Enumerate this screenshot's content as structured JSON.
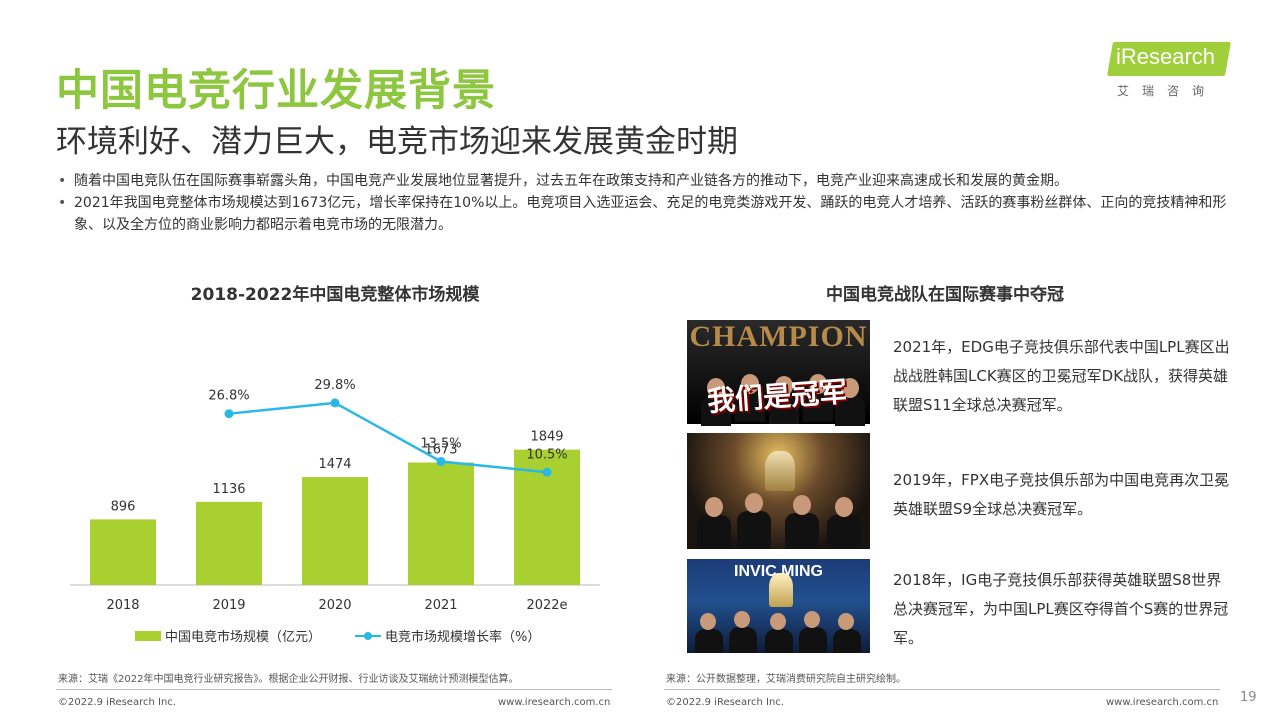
{
  "header": {
    "title": "中国电竞行业发展背景",
    "subtitle": "环境利好、潜力巨大，电竞市场迎来发展黄金时期"
  },
  "logo": {
    "brand": "iResearch",
    "sub": "艾瑞咨询"
  },
  "bullets": [
    "随着中国电竞队伍在国际赛事崭露头角，中国电竞产业发展地位显著提升，过去五年在政策支持和产业链各方的推动下，电竞产业迎来高速成长和发展的黄金期。",
    "2021年我国电竞整体市场规模达到1673亿元，增长率保持在10%以上。电竞项目入选亚运会、充足的电竞类游戏开发、踊跃的电竞人才培养、活跃的赛事粉丝群体、正向的竞技精神和形象、以及全方位的商业影响力都昭示着电竞市场的无限潜力。"
  ],
  "chart_data": {
    "type": "bar",
    "title": "2018-2022年中国电竞整体市场规模",
    "categories": [
      "2018",
      "2019",
      "2020",
      "2021",
      "2022e"
    ],
    "series": [
      {
        "name": "中国电竞市场规模（亿元）",
        "type": "bar",
        "values": [
          896,
          1136,
          1474,
          1673,
          1849
        ],
        "labels": [
          "896",
          "1136",
          "1474",
          "1673",
          "1849"
        ],
        "color": "#a8d030"
      },
      {
        "name": "电竞市场规模增长率（%）",
        "type": "line",
        "values": [
          null,
          26.8,
          29.8,
          13.5,
          10.5
        ],
        "labels": [
          null,
          "26.8%",
          "29.8%",
          "13.5%",
          "10.5%"
        ],
        "color": "#2ab8e6"
      }
    ],
    "grid": false,
    "legend": "bottom"
  },
  "right": {
    "title": "中国电竞战队在国际赛事中夺冠",
    "items": [
      {
        "text": "2021年，EDG电子竞技俱乐部代表中国LPL赛区出战战胜韩国LCK赛区的卫冕冠军DK战队，获得英雄联盟S11全球总决赛冠军。",
        "photo_big": "CHAMPION",
        "photo_cn": "我们是冠军"
      },
      {
        "text": "2019年，FPX电子竞技俱乐部为中国电竞再次卫冕英雄联盟S9全球总决赛冠军。"
      },
      {
        "text": "2018年，IG电子竞技俱乐部获得英雄联盟S8世界总决赛冠军，为中国LPL赛区夺得首个S赛的世界冠军。",
        "photo_big": "INVIC      MING"
      }
    ]
  },
  "footer": {
    "source_left": "来源：艾瑞《2022年中国电竞行业研究报告》。根据企业公开财报、行业访谈及艾瑞统计预测模型估算。",
    "source_right": "来源：公开数据整理，艾瑞消费研究院自主研究绘制。",
    "copyright_left": "©2022.9 iResearch Inc.",
    "url_left": "www.iresearch.com.cn",
    "copyright_right": "©2022.9 iResearch Inc.",
    "url_right": "www.iresearch.com.cn",
    "page": "19"
  }
}
